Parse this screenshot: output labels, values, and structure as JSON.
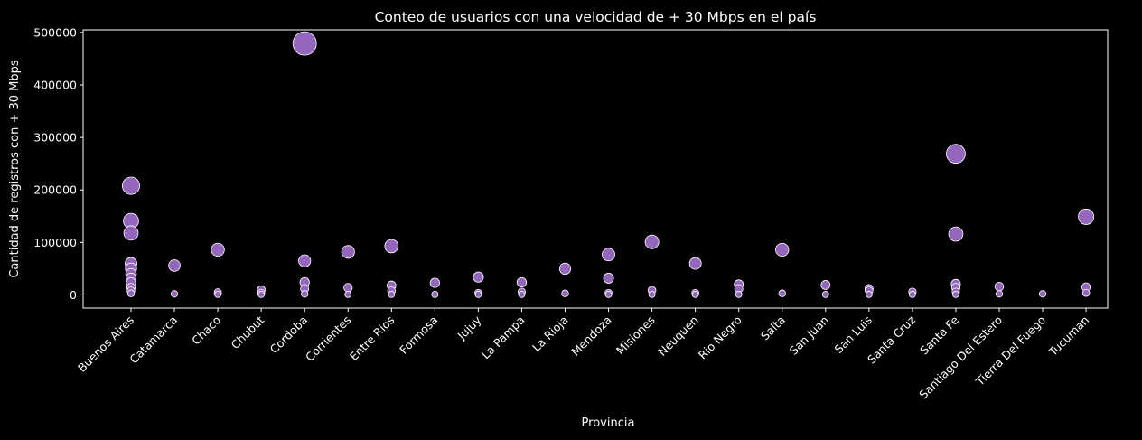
{
  "chart_data": {
    "type": "scatter",
    "title": "Conteo de usuarios con una velocidad de + 30 Mbps en el país",
    "xlabel": "Provincia",
    "ylabel": "Cantidad de registros con + 30 Mbps",
    "ylim": [
      -25000,
      505000
    ],
    "yticks": [
      0,
      100000,
      200000,
      300000,
      400000,
      500000
    ],
    "grid": false,
    "legend": "none",
    "marker_color": "#9467bd",
    "marker_edge": "#ffffff",
    "size_encodes": "y",
    "categories": [
      "Buenos Aires",
      "Catamarca",
      "Chaco",
      "Chubut",
      "Cordoba",
      "Corrientes",
      "Entre Rios",
      "Formosa",
      "Jujuy",
      "La Pampa",
      "La Rioja",
      "Mendoza",
      "Misiones",
      "Neuquen",
      "Rio Negro",
      "Salta",
      "San Juan",
      "San Luis",
      "Santa Cruz",
      "Santa Fe",
      "Santiago Del Estero",
      "Tierra Del Fuego",
      "Tucuman"
    ],
    "points": [
      {
        "x": "Buenos Aires",
        "y": 208000
      },
      {
        "x": "Buenos Aires",
        "y": 141000
      },
      {
        "x": "Buenos Aires",
        "y": 118000
      },
      {
        "x": "Buenos Aires",
        "y": 60000
      },
      {
        "x": "Buenos Aires",
        "y": 50000
      },
      {
        "x": "Buenos Aires",
        "y": 40000
      },
      {
        "x": "Buenos Aires",
        "y": 32000
      },
      {
        "x": "Buenos Aires",
        "y": 24000
      },
      {
        "x": "Buenos Aires",
        "y": 14000
      },
      {
        "x": "Buenos Aires",
        "y": 8000
      },
      {
        "x": "Buenos Aires",
        "y": 3000
      },
      {
        "x": "Catamarca",
        "y": 56000
      },
      {
        "x": "Catamarca",
        "y": 2000
      },
      {
        "x": "Chaco",
        "y": 86000
      },
      {
        "x": "Chaco",
        "y": 5000
      },
      {
        "x": "Chaco",
        "y": 1000
      },
      {
        "x": "Chubut",
        "y": 10000
      },
      {
        "x": "Chubut",
        "y": 4000
      },
      {
        "x": "Chubut",
        "y": 1000
      },
      {
        "x": "Cordoba",
        "y": 479000
      },
      {
        "x": "Cordoba",
        "y": 65000
      },
      {
        "x": "Cordoba",
        "y": 24000
      },
      {
        "x": "Cordoba",
        "y": 12000
      },
      {
        "x": "Cordoba",
        "y": 2000
      },
      {
        "x": "Corrientes",
        "y": 82000
      },
      {
        "x": "Corrientes",
        "y": 14000
      },
      {
        "x": "Corrientes",
        "y": 1000
      },
      {
        "x": "Entre Rios",
        "y": 93000
      },
      {
        "x": "Entre Rios",
        "y": 18000
      },
      {
        "x": "Entre Rios",
        "y": 8000
      },
      {
        "x": "Entre Rios",
        "y": 1000
      },
      {
        "x": "Formosa",
        "y": 23000
      },
      {
        "x": "Formosa",
        "y": 1000
      },
      {
        "x": "Jujuy",
        "y": 34000
      },
      {
        "x": "Jujuy",
        "y": 4000
      },
      {
        "x": "Jujuy",
        "y": 1000
      },
      {
        "x": "La Pampa",
        "y": 24000
      },
      {
        "x": "La Pampa",
        "y": 6000
      },
      {
        "x": "La Pampa",
        "y": 1000
      },
      {
        "x": "La Rioja",
        "y": 50000
      },
      {
        "x": "La Rioja",
        "y": 3000
      },
      {
        "x": "Mendoza",
        "y": 77000
      },
      {
        "x": "Mendoza",
        "y": 32000
      },
      {
        "x": "Mendoza",
        "y": 4000
      },
      {
        "x": "Mendoza",
        "y": 1000
      },
      {
        "x": "Misiones",
        "y": 101000
      },
      {
        "x": "Misiones",
        "y": 9000
      },
      {
        "x": "Misiones",
        "y": 1000
      },
      {
        "x": "Neuquen",
        "y": 60000
      },
      {
        "x": "Neuquen",
        "y": 4000
      },
      {
        "x": "Neuquen",
        "y": 1000
      },
      {
        "x": "Rio Negro",
        "y": 20000
      },
      {
        "x": "Rio Negro",
        "y": 12000
      },
      {
        "x": "Rio Negro",
        "y": 1000
      },
      {
        "x": "Salta",
        "y": 86000
      },
      {
        "x": "Salta",
        "y": 3000
      },
      {
        "x": "San Juan",
        "y": 19000
      },
      {
        "x": "San Juan",
        "y": 1000
      },
      {
        "x": "San Luis",
        "y": 12000
      },
      {
        "x": "San Luis",
        "y": 8000
      },
      {
        "x": "San Luis",
        "y": 1000
      },
      {
        "x": "Santa Cruz",
        "y": 6000
      },
      {
        "x": "Santa Cruz",
        "y": 1000
      },
      {
        "x": "Santa Fe",
        "y": 269000
      },
      {
        "x": "Santa Fe",
        "y": 116000
      },
      {
        "x": "Santa Fe",
        "y": 21000
      },
      {
        "x": "Santa Fe",
        "y": 14000
      },
      {
        "x": "Santa Fe",
        "y": 6000
      },
      {
        "x": "Santa Fe",
        "y": 1000
      },
      {
        "x": "Santiago Del Estero",
        "y": 16000
      },
      {
        "x": "Santiago Del Estero",
        "y": 2000
      },
      {
        "x": "Tierra Del Fuego",
        "y": 2000
      },
      {
        "x": "Tucuman",
        "y": 149000
      },
      {
        "x": "Tucuman",
        "y": 15000
      },
      {
        "x": "Tucuman",
        "y": 4000
      }
    ]
  }
}
